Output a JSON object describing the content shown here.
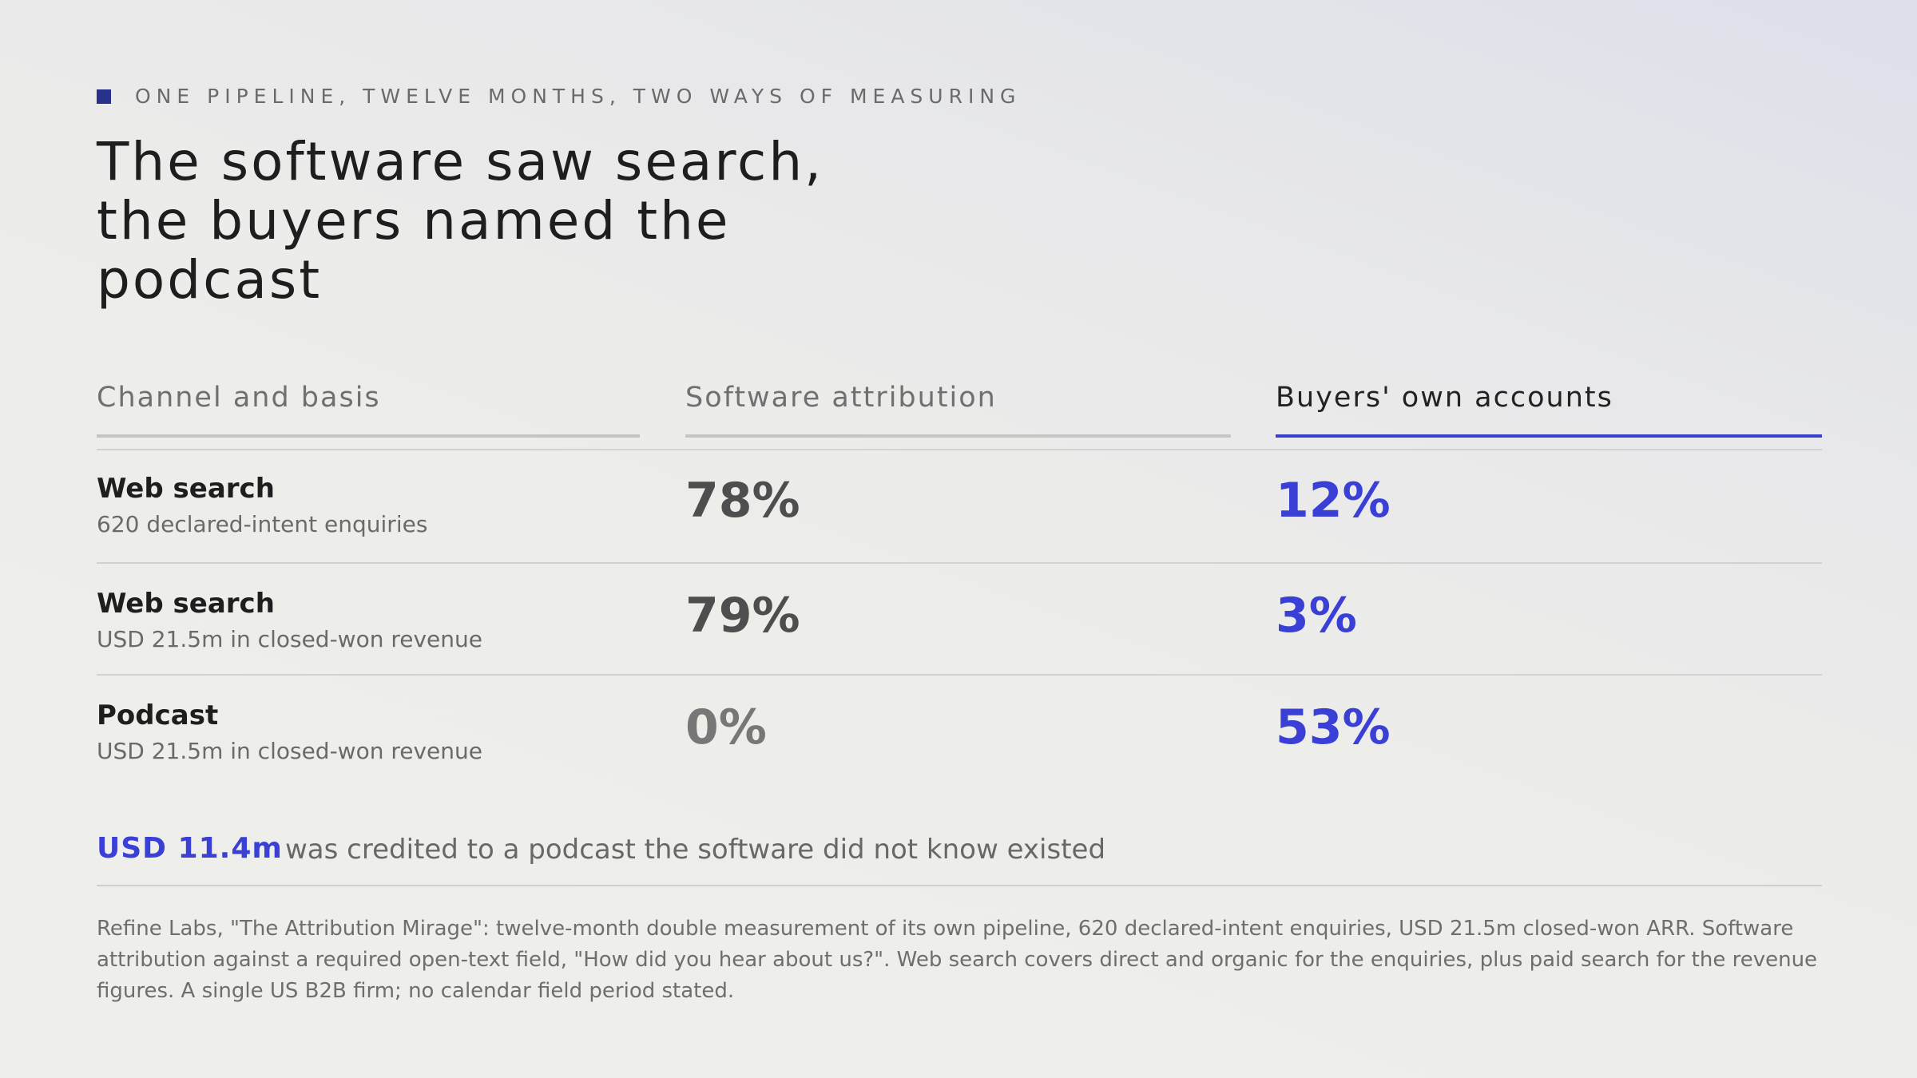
{
  "kicker": "ONE PIPELINE, TWELVE MONTHS, TWO WAYS OF MEASURING",
  "title": {
    "line1": "The software saw search,",
    "line2": "the buyers named the",
    "line3": "podcast"
  },
  "table": {
    "headers": [
      "Channel and basis",
      "Software attribution",
      "Buyers' own accounts"
    ],
    "rows": [
      {
        "channel": "Web search",
        "basis": "620 declared-intent enquiries",
        "software": "78%",
        "buyers": "12%"
      },
      {
        "channel": "Web search",
        "basis": "USD 21.5m in closed-won revenue",
        "software": "79%",
        "buyers": "3%"
      },
      {
        "channel": "Podcast",
        "basis": "USD 21.5m in closed-won revenue",
        "software": "0%",
        "buyers": "53%"
      }
    ]
  },
  "callout": {
    "figure": "USD 11.4m",
    "text": "was credited to a podcast the software did not know existed"
  },
  "footnote": {
    "line1": "Refine Labs, \"The Attribution Mirage\": twelve-month double measurement of its own pipeline, 620 declared-intent enquiries, USD 21.5m closed-won ARR. Software",
    "line2": "attribution against a required open-text field, \"How did you hear about us?\". Web search covers direct and organic for the enquiries, plus paid search for the revenue",
    "line3": "figures. A single US B2B firm; no calendar field period stated."
  },
  "colors": {
    "accent": "#3a3fd6",
    "kicker_mark": "#27308a",
    "accent_rule": "#3a40cc"
  }
}
